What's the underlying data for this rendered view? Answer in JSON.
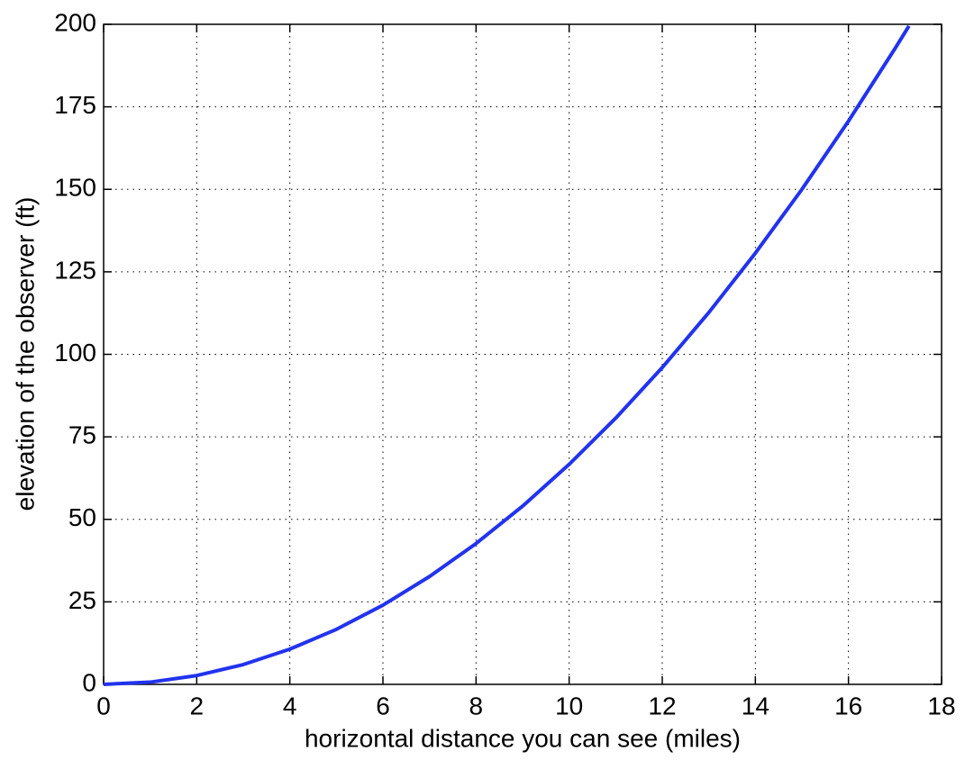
{
  "chart_data": {
    "type": "line",
    "x_label": "horizontal distance you can see (miles)",
    "y_label": "elevation of the observer (ft)",
    "x": [
      0,
      1,
      2,
      3,
      4,
      5,
      6,
      7,
      8,
      9,
      10,
      11,
      12,
      13,
      14,
      15,
      16,
      17,
      17.3
    ],
    "series": [
      {
        "color": "#2233ee",
        "values": [
          0,
          0.67,
          2.67,
          6,
          10.67,
          16.67,
          24,
          32.67,
          42.67,
          54,
          66.67,
          80.67,
          96,
          112.67,
          130.67,
          150,
          170.67,
          192.67,
          199.5
        ]
      }
    ],
    "xlim": [
      0,
      18
    ],
    "xticks": [
      0,
      2,
      4,
      6,
      8,
      10,
      12,
      14,
      16,
      18
    ],
    "ylim": [
      0,
      200
    ],
    "yticks": [
      0,
      25,
      50,
      75,
      100,
      125,
      150,
      175,
      200
    ],
    "grid": true
  }
}
